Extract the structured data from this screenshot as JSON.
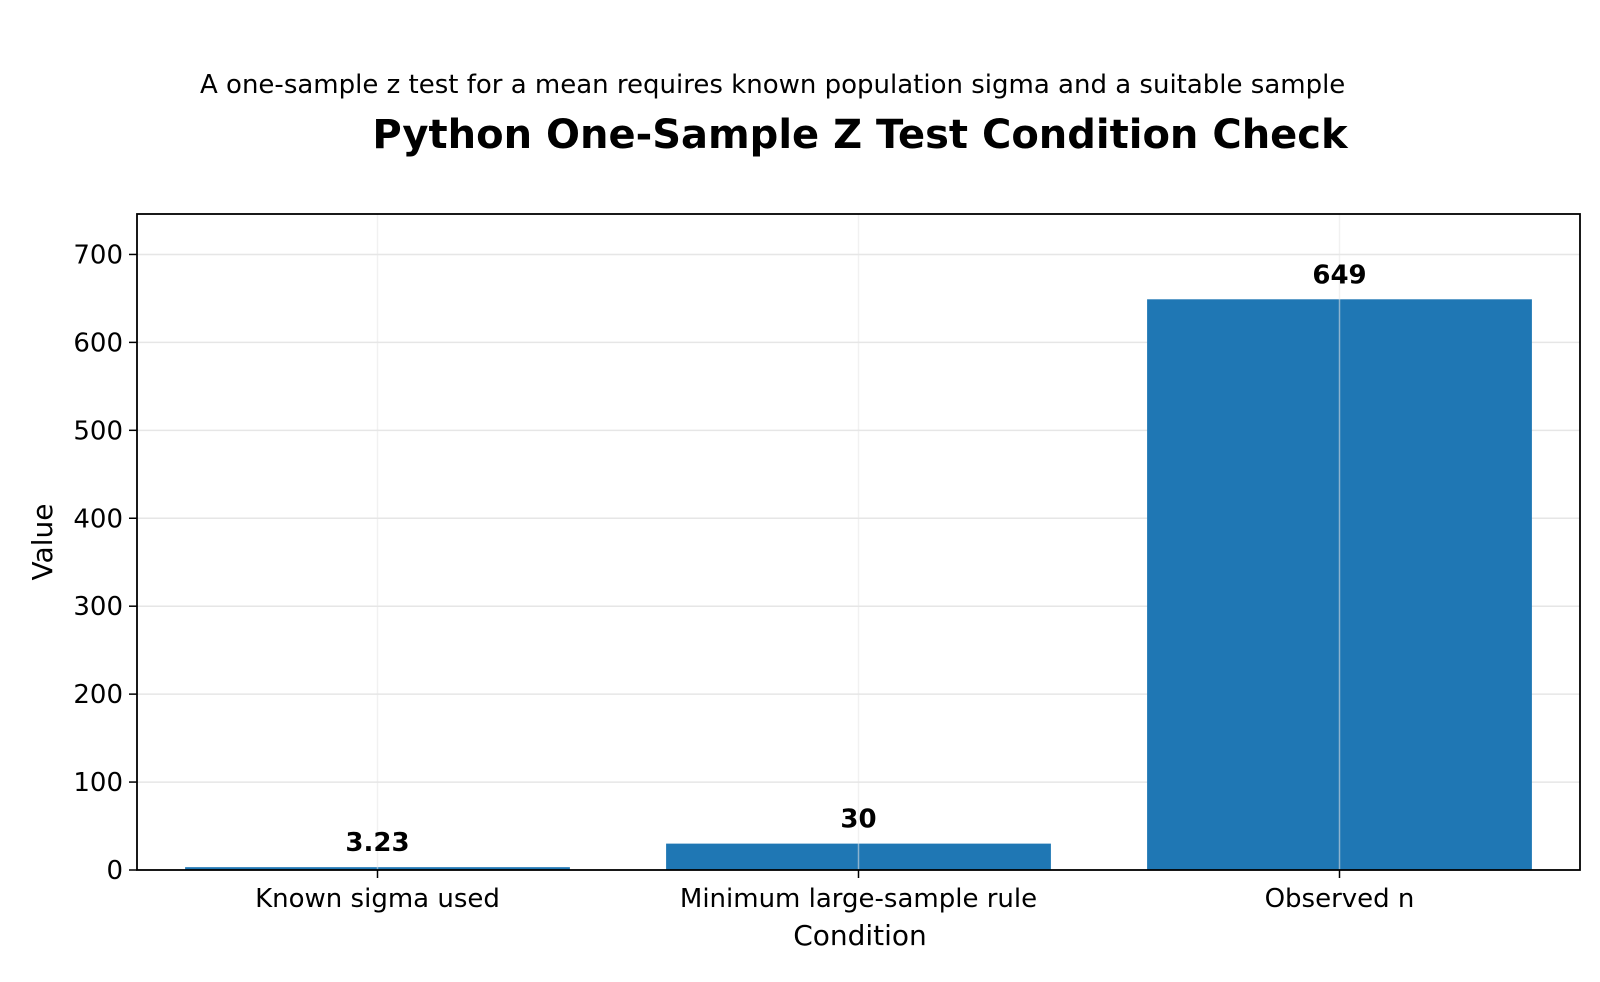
{
  "chart_data": {
    "type": "bar",
    "subtitle": "A one-sample z test for a mean requires known population sigma and a suitable sample",
    "title": "Python One-Sample Z Test Condition Check",
    "xlabel": "Condition",
    "ylabel": "Value",
    "categories": [
      "Known sigma used",
      "Minimum large-sample rule",
      "Observed n"
    ],
    "values": [
      3.23,
      30,
      649
    ],
    "value_labels": [
      "3.23",
      "30",
      "649"
    ],
    "ylim": [
      0,
      746
    ],
    "yticks": [
      0,
      100,
      200,
      300,
      400,
      500,
      600,
      700
    ],
    "grid": true,
    "bar_color": "#1f77b4"
  }
}
